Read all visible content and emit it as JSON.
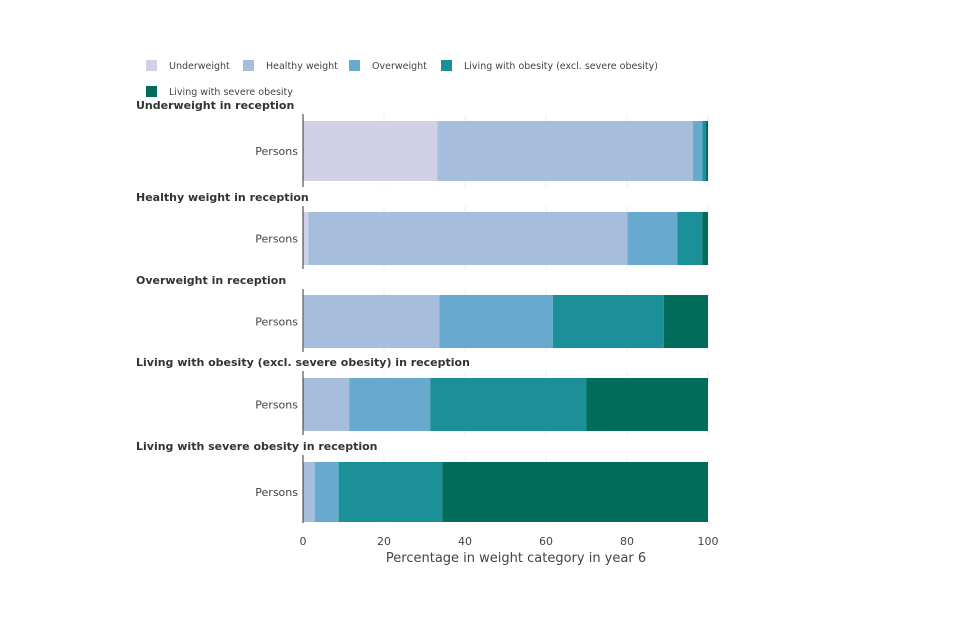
{
  "chart_data": {
    "type": "bar",
    "orientation": "horizontal",
    "stacked": true,
    "xlabel": "Percentage in weight category in year 6",
    "xlim": [
      0,
      100
    ],
    "xticks": [
      "0",
      "20",
      "40",
      "60",
      "80",
      "100"
    ],
    "grid": true,
    "legend_position": "top-left",
    "series": [
      {
        "name": "Underweight",
        "color": "#d0d1e6"
      },
      {
        "name": "Healthy weight",
        "color": "#a6bddb"
      },
      {
        "name": "Overweight",
        "color": "#67a9cf"
      },
      {
        "name": "Living with obesity (excl. severe obesity)",
        "color": "#1c9099"
      },
      {
        "name": "Living with severe obesity",
        "color": "#016c59"
      }
    ],
    "panels": [
      {
        "title": "Underweight in reception",
        "category": "Persons",
        "values": [
          33.2,
          63.1,
          2.3,
          0.9,
          0.5
        ]
      },
      {
        "title": "Healthy weight in reception",
        "category": "Persons",
        "values": [
          1.3,
          78.8,
          12.3,
          6.2,
          1.4
        ]
      },
      {
        "title": "Overweight in reception",
        "category": "Persons",
        "values": [
          0.2,
          33.5,
          28.0,
          27.4,
          10.9
        ]
      },
      {
        "title": "Living with obesity (excl. severe obesity) in reception",
        "category": "Persons",
        "values": [
          0.1,
          11.3,
          20.0,
          38.6,
          30.0
        ]
      },
      {
        "title": "Living with severe obesity in reception",
        "category": "Persons",
        "values": [
          0.0,
          2.9,
          5.9,
          25.6,
          65.6
        ]
      }
    ]
  }
}
